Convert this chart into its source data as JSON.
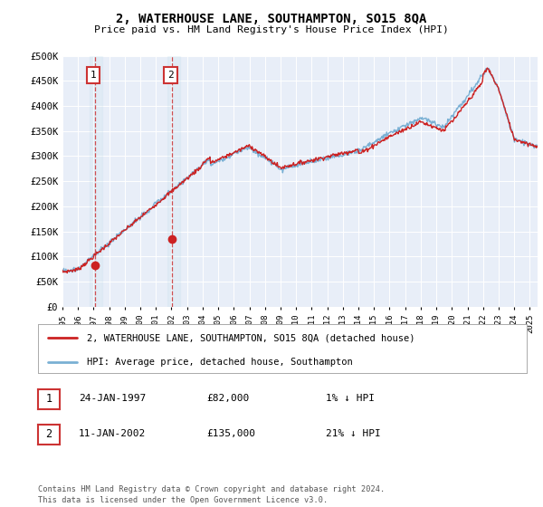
{
  "title": "2, WATERHOUSE LANE, SOUTHAMPTON, SO15 8QA",
  "subtitle": "Price paid vs. HM Land Registry's House Price Index (HPI)",
  "ylabel_ticks": [
    "£0",
    "£50K",
    "£100K",
    "£150K",
    "£200K",
    "£250K",
    "£300K",
    "£350K",
    "£400K",
    "£450K",
    "£500K"
  ],
  "ytick_values": [
    0,
    50000,
    100000,
    150000,
    200000,
    250000,
    300000,
    350000,
    400000,
    450000,
    500000
  ],
  "xlim_start": 1995.0,
  "xlim_end": 2025.5,
  "ylim_min": 0,
  "ylim_max": 500000,
  "purchase_points": [
    {
      "date_year": 1997.07,
      "price": 82000,
      "label": "1"
    },
    {
      "date_year": 2002.04,
      "price": 135000,
      "label": "2"
    }
  ],
  "hpi_line_color": "#7ab0d4",
  "price_line_color": "#cc2222",
  "dashed_line_color": "#cc3333",
  "background_color": "#ffffff",
  "plot_bg_color": "#e8eef8",
  "grid_color": "#ffffff",
  "legend_entries": [
    "2, WATERHOUSE LANE, SOUTHAMPTON, SO15 8QA (detached house)",
    "HPI: Average price, detached house, Southampton"
  ],
  "table_rows": [
    {
      "num": "1",
      "date": "24-JAN-1997",
      "price": "£82,000",
      "hpi": "1% ↓ HPI"
    },
    {
      "num": "2",
      "date": "11-JAN-2002",
      "price": "£135,000",
      "hpi": "21% ↓ HPI"
    }
  ],
  "footer": "Contains HM Land Registry data © Crown copyright and database right 2024.\nThis data is licensed under the Open Government Licence v3.0.",
  "xtick_years": [
    1995,
    1996,
    1997,
    1998,
    1999,
    2000,
    2001,
    2002,
    2003,
    2004,
    2005,
    2006,
    2007,
    2008,
    2009,
    2010,
    2011,
    2012,
    2013,
    2014,
    2015,
    2016,
    2017,
    2018,
    2019,
    2020,
    2021,
    2022,
    2023,
    2024,
    2025
  ]
}
